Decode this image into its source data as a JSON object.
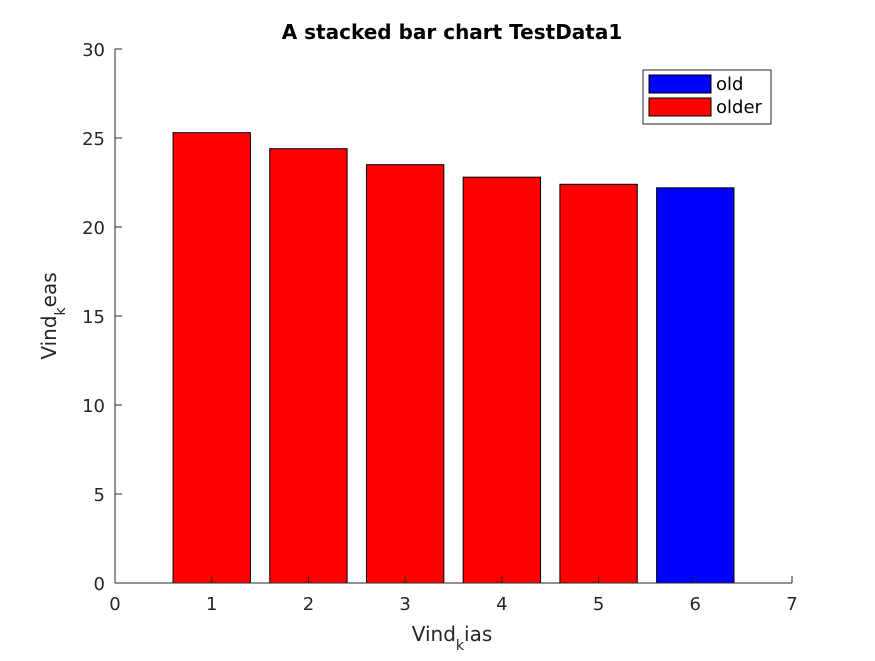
{
  "chart_data": {
    "type": "bar",
    "stacked": true,
    "title": "A stacked bar chart TestData1",
    "xlabel": {
      "base": "Vind",
      "sub": "k",
      "rest": "ias"
    },
    "ylabel": {
      "base": "Vind",
      "sub": "k",
      "rest": "eas"
    },
    "xlim": [
      0,
      7
    ],
    "ylim": [
      0,
      30
    ],
    "xticks": [
      0,
      1,
      2,
      3,
      4,
      5,
      6,
      7
    ],
    "yticks": [
      0,
      5,
      10,
      15,
      20,
      25,
      30
    ],
    "x": [
      1,
      2,
      3,
      4,
      5,
      6
    ],
    "series": [
      {
        "name": "old",
        "color": "#0000ff",
        "values": [
          0,
          0,
          0,
          0,
          0,
          22.2
        ]
      },
      {
        "name": "older",
        "color": "#ff0000",
        "values": [
          25.3,
          24.4,
          23.5,
          22.8,
          22.4,
          0
        ]
      }
    ],
    "grid": false,
    "legend_position": "top-right"
  }
}
